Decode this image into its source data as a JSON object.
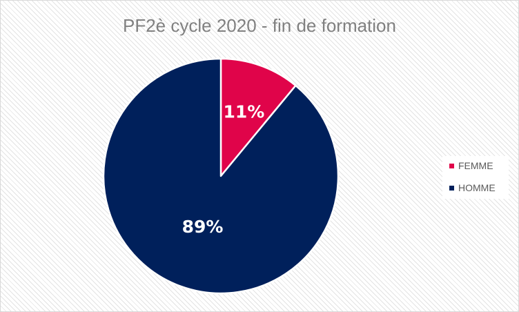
{
  "chart_data": {
    "type": "pie",
    "title": "PF2è cycle 2020 - fin de formation",
    "categories": [
      "FEMME",
      "HOMME"
    ],
    "values": [
      11,
      89
    ],
    "data_labels": [
      "11%",
      "89%"
    ],
    "colors": [
      "#e0044a",
      "#00205b"
    ],
    "legend_position": "right"
  }
}
